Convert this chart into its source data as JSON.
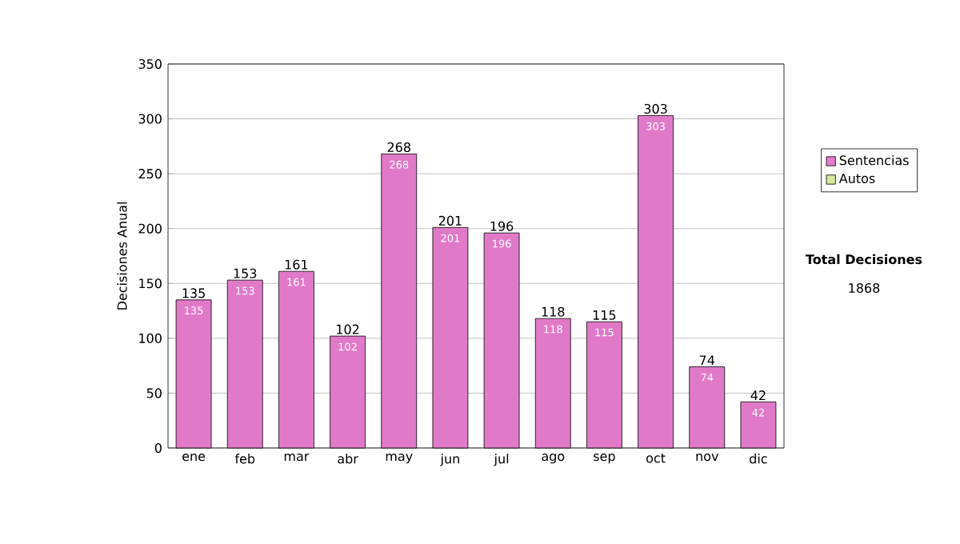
{
  "chart_data": {
    "type": "bar",
    "ylabel": "Decisiones Anual",
    "categories": [
      "ene",
      "feb",
      "mar",
      "abr",
      "may",
      "jun",
      "jul",
      "ago",
      "sep",
      "oct",
      "nov",
      "dic"
    ],
    "series": [
      {
        "name": "Sentencias",
        "color": "#e07ac8",
        "values": [
          135,
          153,
          161,
          102,
          268,
          201,
          196,
          118,
          115,
          303,
          74,
          42
        ],
        "value_labels": [
          "135",
          "153",
          "161",
          "102",
          "268",
          "201",
          "196",
          "118",
          "115",
          "303",
          "74",
          "42"
        ]
      },
      {
        "name": "Autos",
        "color": "#d4e8a0",
        "values": [
          null,
          null,
          null,
          null,
          null,
          null,
          null,
          null,
          null,
          null,
          null,
          null
        ]
      }
    ],
    "stacked": true,
    "totals": [
      "135",
      "153",
      "161",
      "102",
      "268",
      "201",
      "196",
      "118",
      "115",
      "303",
      "74",
      "42"
    ],
    "ylim": [
      0,
      350
    ],
    "yticks": [
      0,
      50,
      100,
      150,
      200,
      250,
      300,
      350
    ],
    "grid": "y",
    "legend": "right",
    "annotations": [
      "Total Decisiones",
      "1868"
    ]
  }
}
